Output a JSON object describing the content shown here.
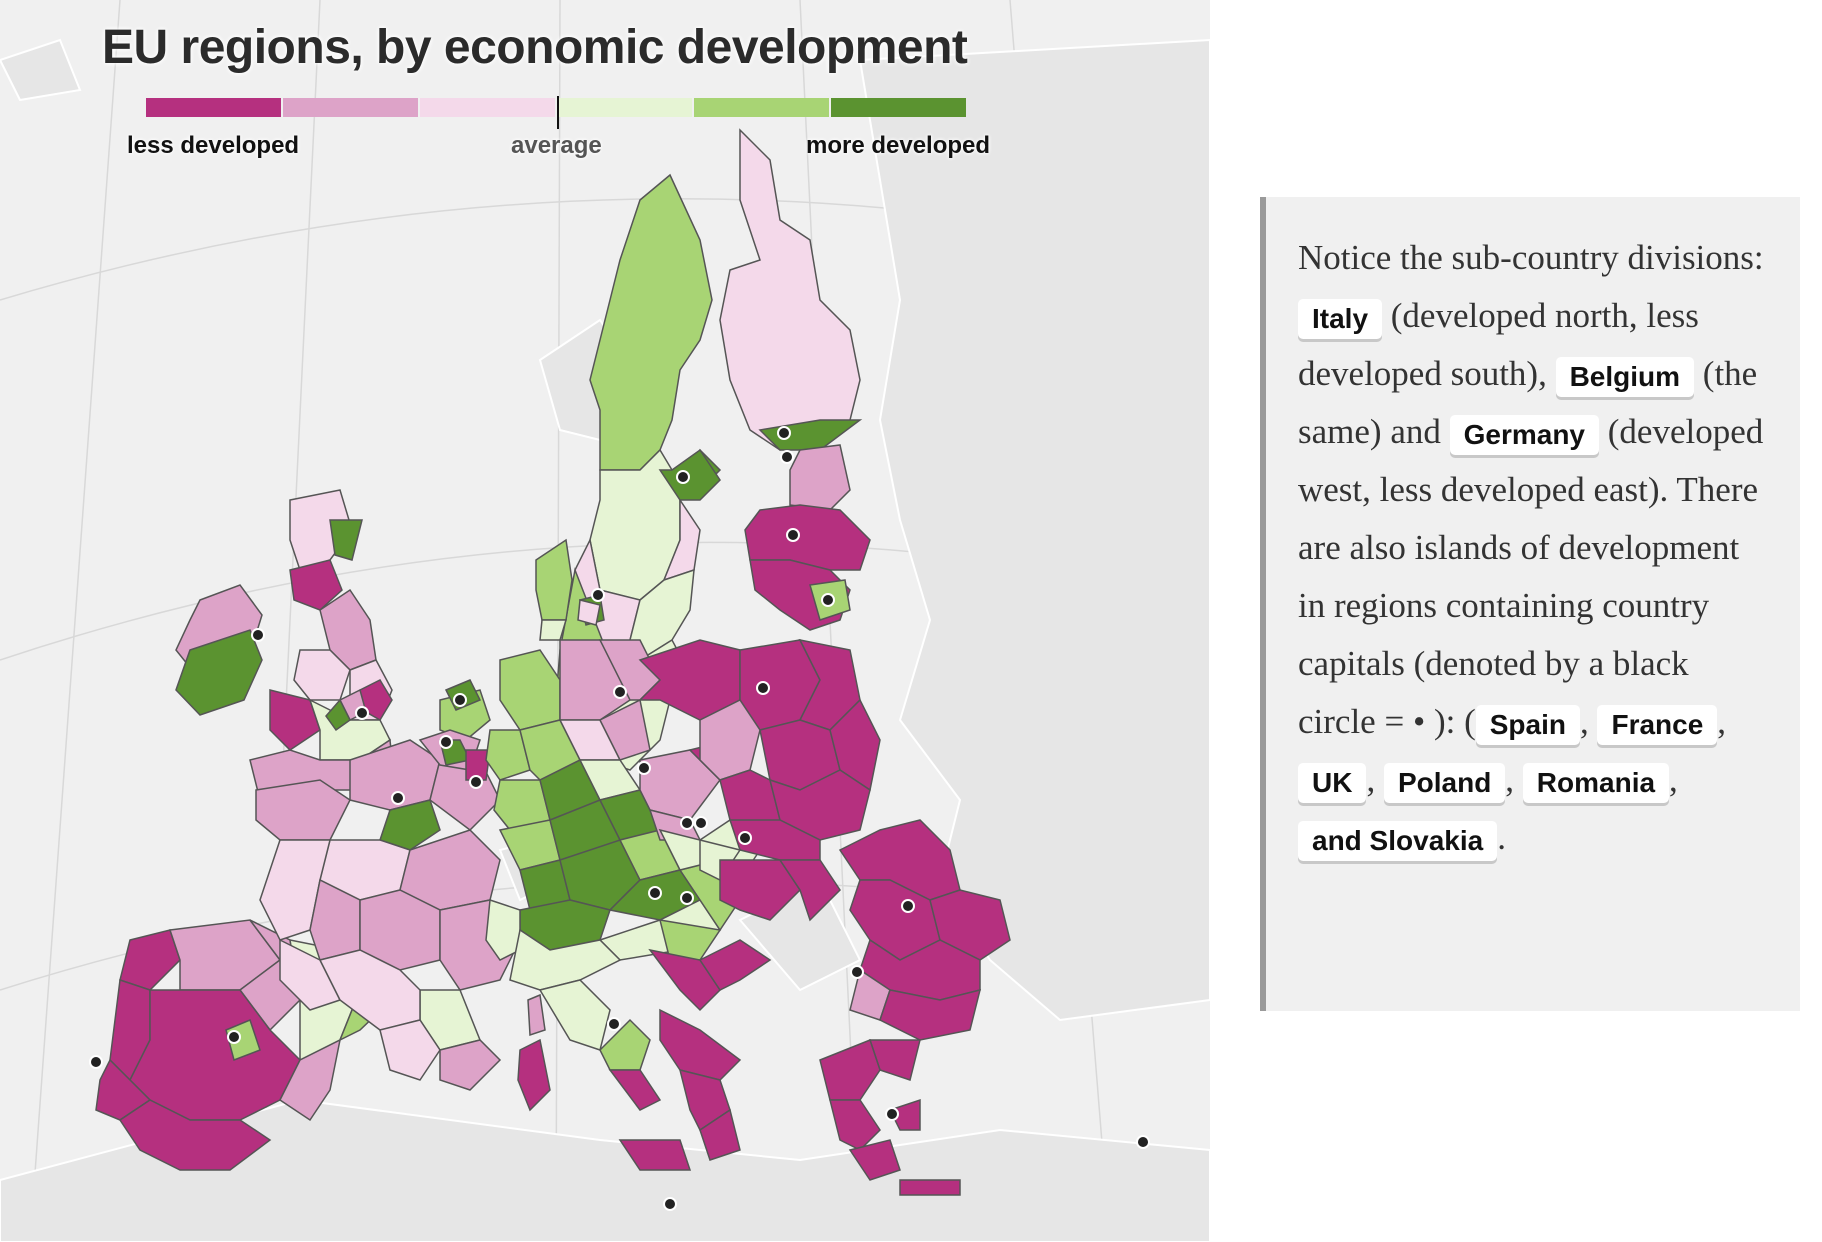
{
  "map": {
    "title": "EU regions, by economic development",
    "legend": {
      "colors": [
        "#b5307f",
        "#dda3c8",
        "#f4d9ea",
        "#e6f4d4",
        "#a8d474",
        "#5b9330"
      ],
      "labels": {
        "less": "less developed",
        "average": "average",
        "more": "more developed"
      }
    }
  },
  "note": {
    "t1": "Notice the sub-country divisions: ",
    "italy": "Italy",
    "t2": " (developed north, less developed south), ",
    "belgium": "Belgium",
    "t3": " (the same) and ",
    "germany": "Germany",
    "t4": " (developed west, less developed east). There are also islands of development in regions containing country capitals (denoted by a black circle = • ): (",
    "spain": "Spain",
    "c1": ", ",
    "france": "France",
    "c2": ", ",
    "uk": "UK",
    "c3": ", ",
    "poland": "Poland",
    "c4": ", ",
    "romania": "Romania",
    "c5": ", ",
    "slovakia": "and Slovakia",
    "t5": "."
  }
}
